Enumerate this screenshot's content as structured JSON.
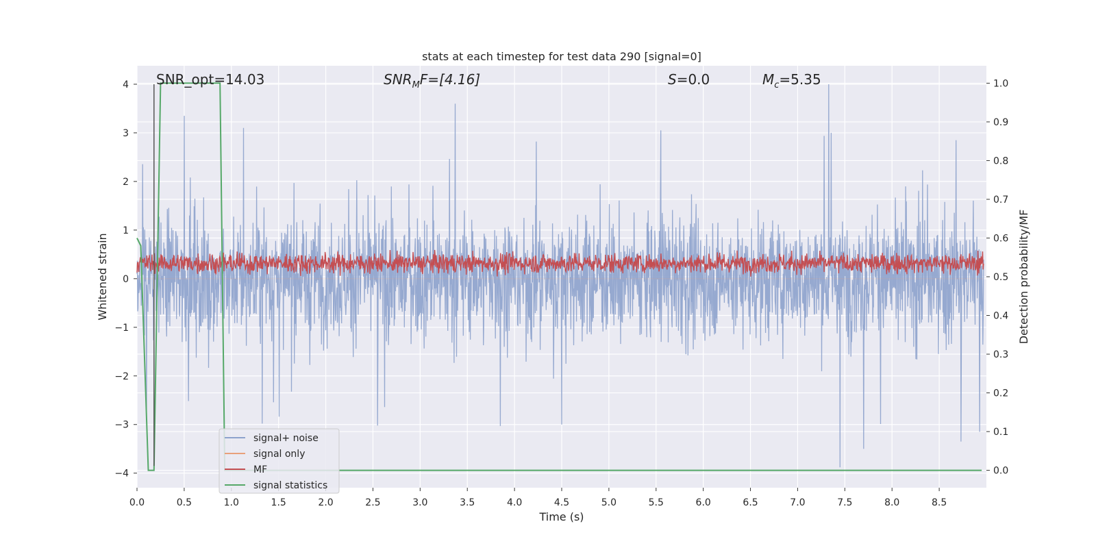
{
  "chart_data": {
    "type": "line",
    "title": "stats at each timestep for test data 290 [signal=0]",
    "xlabel": "Time (s)",
    "ylabel": "Whitened strain",
    "y2label": "Detection probability/MF",
    "xlim": [
      0.0,
      9.0
    ],
    "ylim": [
      -4.3,
      4.38
    ],
    "y2lim": [
      -0.045,
      1.045
    ],
    "grid": true,
    "xticks": [
      "0.0",
      "0.5",
      "1.0",
      "1.5",
      "2.0",
      "2.5",
      "3.0",
      "3.5",
      "4.0",
      "4.5",
      "5.0",
      "5.5",
      "6.0",
      "6.5",
      "7.0",
      "7.5",
      "8.0",
      "8.5"
    ],
    "yticks": [
      "4",
      "3",
      "2",
      "1",
      "0",
      "−1",
      "−2",
      "−3",
      "−4"
    ],
    "y2ticks": [
      "1.0",
      "0.9",
      "0.8",
      "0.7",
      "0.6",
      "0.5",
      "0.4",
      "0.3",
      "0.2",
      "0.1",
      "0.0"
    ],
    "annotations": {
      "snr_opt": "SNR_opt=14.03",
      "snr_mf_sym": "SNR",
      "snr_mf_sub": "M",
      "snr_mf_rest": "F=[4.16]",
      "s_sym": "S",
      "s_rest": "=0.0",
      "mc_sym": "M",
      "mc_sub": "c",
      "mc_rest": "=5.35"
    },
    "legend": {
      "placement": "lower-left",
      "entries": [
        "signal+ noise",
        "signal only",
        "MF",
        "signal statistics"
      ]
    },
    "colors": {
      "noise": "#8da2cc",
      "signal": "#e8a07a",
      "mf": "#c44e52",
      "stat": "#55a868",
      "background": "#eaeaf2",
      "grid": "#ffffff",
      "marker_line": "#555555"
    },
    "series": [
      {
        "name": "signal+ noise",
        "description_points": {
          "peaks": [
            [
              0.5,
              3.35
            ],
            [
              1.13,
              3.1
            ],
            [
              3.37,
              3.6
            ],
            [
              5.55,
              3.05
            ],
            [
              7.33,
              4.0
            ],
            [
              8.68,
              2.85
            ]
          ],
          "troughs": [
            [
              0.1,
              -2.7
            ],
            [
              2.55,
              -3.02
            ],
            [
              3.85,
              -3.03
            ],
            [
              7.45,
              -3.88
            ],
            [
              7.7,
              -3.5
            ],
            [
              8.73,
              -3.35
            ],
            [
              8.93,
              -3.15
            ]
          ]
        }
      },
      {
        "name": "signal only",
        "values_note": "flat"
      },
      {
        "name": "MF",
        "axis": "right",
        "range": [
          0.5,
          0.6
        ]
      },
      {
        "name": "signal statistics",
        "axis": "right",
        "x": [
          0.0,
          0.04,
          0.12,
          0.18,
          0.25,
          0.88,
          0.93,
          8.0,
          8.95
        ],
        "y": [
          0.6,
          0.58,
          0.0,
          0.0,
          1.0,
          1.0,
          0.0,
          0.0,
          0.0
        ]
      }
    ],
    "vertical_marker_x": 0.18
  }
}
